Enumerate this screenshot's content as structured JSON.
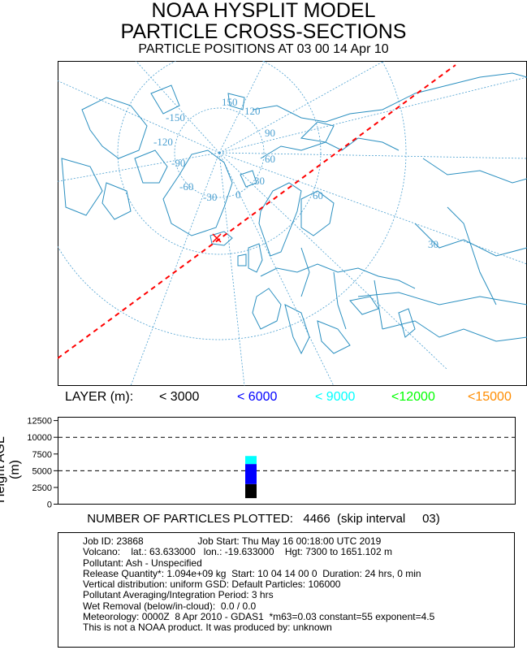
{
  "titles": {
    "line1": "NOAA HYSPLIT MODEL",
    "line2": "PARTICLE CROSS-SECTIONS",
    "line3": "PARTICLE POSITIONS AT 03 00  14 Apr 10"
  },
  "map": {
    "lon_labels": [
      "-150",
      "-120",
      "-90",
      "-60",
      "-30",
      "0",
      "30",
      "60",
      "90",
      "120",
      "150"
    ],
    "lat_labels": [
      "30",
      "60"
    ],
    "grid_color": "#4a9fd0",
    "coast_color": "#2a8fc0",
    "trajectory_color": "#ff0000",
    "source_marker_color": "#ff0000"
  },
  "legend": {
    "title": "LAYER (m):",
    "items": [
      {
        "label": "< 3000",
        "color": "#000000"
      },
      {
        "label": "< 6000",
        "color": "#0000ff"
      },
      {
        "label": "< 9000",
        "color": "#00ffff"
      },
      {
        "label": "<12000",
        "color": "#00ff00"
      },
      {
        "label": "<15000",
        "color": "#ff8c00"
      }
    ]
  },
  "chart_data": {
    "type": "scatter",
    "ylabel": "Height AGL (m)",
    "yticks": [
      0,
      2500,
      5000,
      7500,
      10000,
      12500
    ],
    "ylim": [
      0,
      13000
    ],
    "dashed_reference_lines": [
      5000,
      10000
    ],
    "particle_column": [
      {
        "layer": "< 3000",
        "color": "#000000",
        "y_range": [
          900,
          3000
        ]
      },
      {
        "layer": "< 6000",
        "color": "#0000ff",
        "y_range": [
          3000,
          6000
        ]
      },
      {
        "layer": "< 9000",
        "color": "#00ffff",
        "y_range": [
          6000,
          7200
        ]
      }
    ]
  },
  "count_text": "NUMBER OF PARTICLES PLOTTED:   4466  (skip interval     03)",
  "info_lines": [
    "Job ID: 23868                    Job Start: Thu May 16 00:18:00 UTC 2019",
    "Volcano:    lat.: 63.633000   lon.: -19.633000    Hgt: 7300 to 1651.102 m",
    "Pollutant: Ash - Unspecified",
    "Release Quantity*: 1.094e+09 kg  Start: 10 04 14 00 0  Duration: 24 hrs, 0 min",
    "Vertical distribution: uniform GSD: Default Particles: 106000",
    "Pollutant Averaging/Integration Period: 3 hrs",
    "Wet Removal (below/in-cloud):  0.0 / 0.0",
    "Meteorology: 0000Z  8 Apr 2010 - GDAS1  *m63=0.03 constant=55 exponent=4.5",
    "This is not a NOAA product. It was produced by: unknown"
  ]
}
